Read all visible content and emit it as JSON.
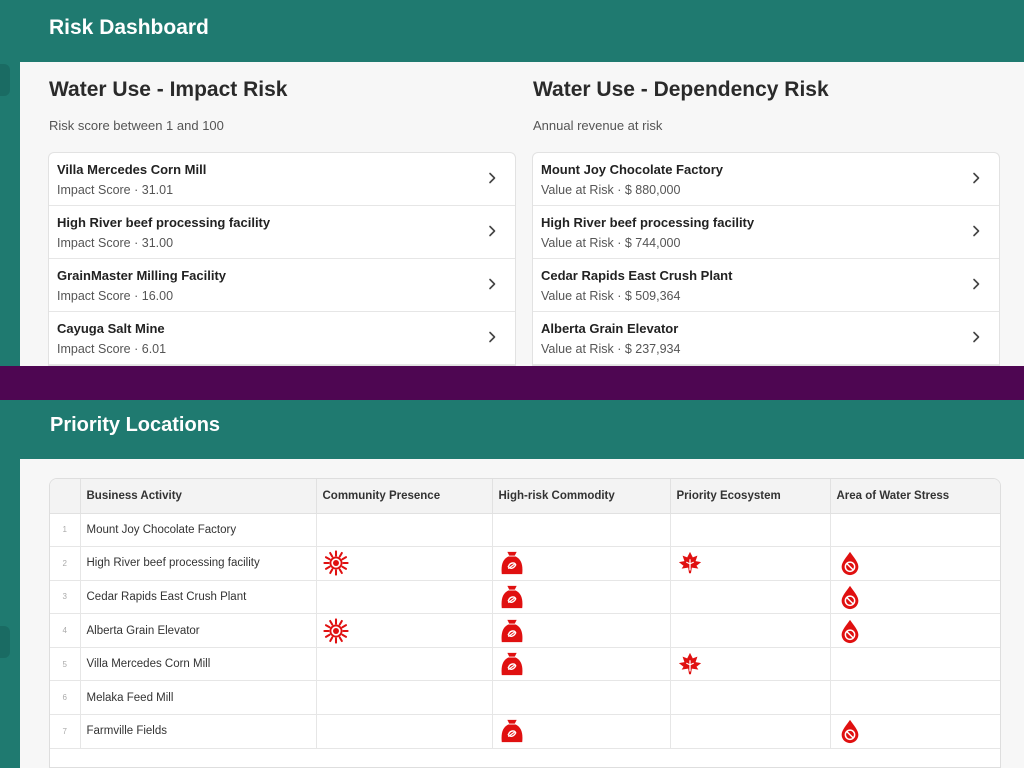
{
  "header": {
    "title": "Risk Dashboard"
  },
  "impact": {
    "title": "Water Use - Impact Risk",
    "subtitle": "Risk score between 1 and 100",
    "items": [
      {
        "name": "Villa Mercedes Corn Mill",
        "metric": "Impact Score · 31.01"
      },
      {
        "name": "High River beef processing facility",
        "metric": "Impact Score · 31.00"
      },
      {
        "name": "GrainMaster Milling Facility",
        "metric": "Impact Score · 16.00"
      },
      {
        "name": "Cayuga Salt Mine",
        "metric": "Impact Score · 6.01"
      }
    ]
  },
  "dependency": {
    "title": "Water Use - Dependency Risk",
    "subtitle": "Annual revenue at risk",
    "items": [
      {
        "name": "Mount Joy Chocolate Factory",
        "metric": "Value at Risk · $ 880,000"
      },
      {
        "name": "High River beef processing facility",
        "metric": "Value at Risk · $ 744,000"
      },
      {
        "name": "Cedar Rapids East Crush Plant",
        "metric": "Value at Risk · $ 509,364"
      },
      {
        "name": "Alberta Grain Elevator",
        "metric": "Value at Risk · $ 237,934"
      }
    ]
  },
  "priority": {
    "title": "Priority Locations",
    "columns": [
      "Business Activity",
      "Community Presence",
      "High-risk Commodity",
      "Priority Ecosystem",
      "Area of Water Stress"
    ],
    "rows": [
      {
        "num": "1",
        "activity": "Mount Joy Chocolate Factory",
        "community": false,
        "commodity": false,
        "ecosystem": false,
        "water": false
      },
      {
        "num": "2",
        "activity": "High River beef processing facility",
        "community": true,
        "commodity": true,
        "ecosystem": true,
        "water": true
      },
      {
        "num": "3",
        "activity": "Cedar Rapids East Crush Plant",
        "community": false,
        "commodity": true,
        "ecosystem": false,
        "water": true
      },
      {
        "num": "4",
        "activity": "Alberta Grain Elevator",
        "community": true,
        "commodity": true,
        "ecosystem": false,
        "water": true
      },
      {
        "num": "5",
        "activity": "Villa Mercedes Corn Mill",
        "community": false,
        "commodity": true,
        "ecosystem": true,
        "water": false
      },
      {
        "num": "6",
        "activity": "Melaka Feed Mill",
        "community": false,
        "commodity": false,
        "ecosystem": false,
        "water": false
      },
      {
        "num": "7",
        "activity": "Farmville Fields",
        "community": false,
        "commodity": true,
        "ecosystem": false,
        "water": true
      }
    ]
  },
  "icons": {
    "community": "sun-icon",
    "commodity": "sack-icon",
    "ecosystem": "leaf-icon",
    "water": "water-drop-icon",
    "row_action": "chevron-right-icon"
  },
  "colors": {
    "header_bg": "#1f7a70",
    "divider": "#4e0652",
    "icon_red": "#e01010"
  }
}
